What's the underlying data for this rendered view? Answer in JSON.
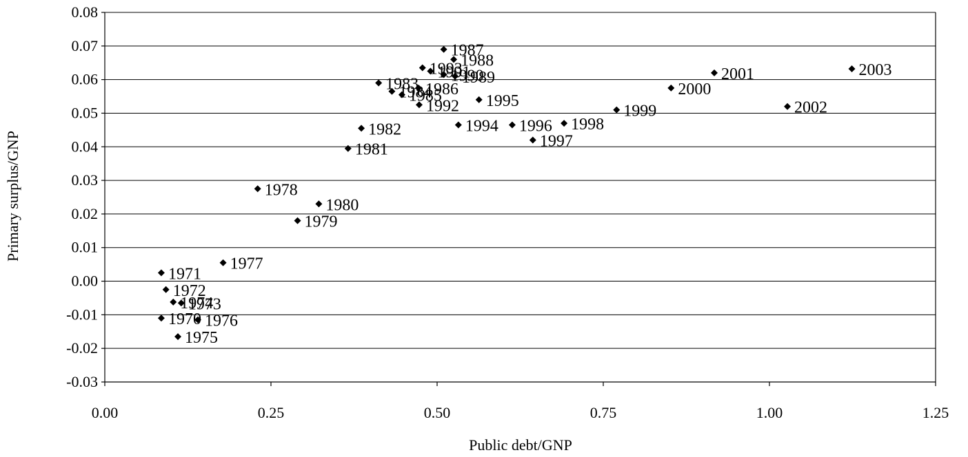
{
  "chart_data": {
    "type": "scatter",
    "title": "",
    "xlabel": "Public debt/GNP",
    "ylabel": "Primary surplus/GNP",
    "xlim": [
      0,
      1.25
    ],
    "ylim": [
      -0.03,
      0.08
    ],
    "x_ticks": [
      "0.00",
      "0.25",
      "0.50",
      "0.75",
      "1.00",
      "1.25"
    ],
    "y_ticks": [
      "-0.03",
      "-0.02",
      "-0.01",
      "0.00",
      "0.01",
      "0.02",
      "0.03",
      "0.04",
      "0.05",
      "0.06",
      "0.07",
      "0.08"
    ],
    "grid": "horizontal",
    "marker": "diamond",
    "marker_color": "#000000",
    "points": [
      {
        "label": "1970",
        "x": 0.085,
        "y": -0.011
      },
      {
        "label": "1971",
        "x": 0.085,
        "y": 0.0025
      },
      {
        "label": "1972",
        "x": 0.092,
        "y": -0.0025
      },
      {
        "label": "1973",
        "x": 0.115,
        "y": -0.0065
      },
      {
        "label": "1974",
        "x": 0.103,
        "y": -0.0062
      },
      {
        "label": "1975",
        "x": 0.11,
        "y": -0.0165
      },
      {
        "label": "1976",
        "x": 0.14,
        "y": -0.0115
      },
      {
        "label": "1977",
        "x": 0.178,
        "y": 0.0055
      },
      {
        "label": "1978",
        "x": 0.23,
        "y": 0.0275
      },
      {
        "label": "1979",
        "x": 0.29,
        "y": 0.018
      },
      {
        "label": "1980",
        "x": 0.322,
        "y": 0.023
      },
      {
        "label": "1981",
        "x": 0.366,
        "y": 0.0395
      },
      {
        "label": "1982",
        "x": 0.386,
        "y": 0.0455
      },
      {
        "label": "1983",
        "x": 0.412,
        "y": 0.059
      },
      {
        "label": "1984",
        "x": 0.432,
        "y": 0.0565
      },
      {
        "label": "1985",
        "x": 0.447,
        "y": 0.0555
      },
      {
        "label": "1986",
        "x": 0.472,
        "y": 0.0575
      },
      {
        "label": "1987",
        "x": 0.51,
        "y": 0.069
      },
      {
        "label": "1988",
        "x": 0.525,
        "y": 0.066
      },
      {
        "label": "1989",
        "x": 0.527,
        "y": 0.061
      },
      {
        "label": "1990",
        "x": 0.51,
        "y": 0.0615
      },
      {
        "label": "1991",
        "x": 0.49,
        "y": 0.0625
      },
      {
        "label": "1992",
        "x": 0.473,
        "y": 0.0525
      },
      {
        "label": "1993",
        "x": 0.478,
        "y": 0.0635
      },
      {
        "label": "1994",
        "x": 0.532,
        "y": 0.0465
      },
      {
        "label": "1995",
        "x": 0.563,
        "y": 0.054
      },
      {
        "label": "1996",
        "x": 0.613,
        "y": 0.0465
      },
      {
        "label": "1997",
        "x": 0.644,
        "y": 0.042
      },
      {
        "label": "1998",
        "x": 0.691,
        "y": 0.047
      },
      {
        "label": "1999",
        "x": 0.77,
        "y": 0.051
      },
      {
        "label": "2000",
        "x": 0.852,
        "y": 0.0575
      },
      {
        "label": "2001",
        "x": 0.917,
        "y": 0.062
      },
      {
        "label": "2002",
        "x": 1.027,
        "y": 0.052
      },
      {
        "label": "2003",
        "x": 1.124,
        "y": 0.0632
      }
    ]
  }
}
